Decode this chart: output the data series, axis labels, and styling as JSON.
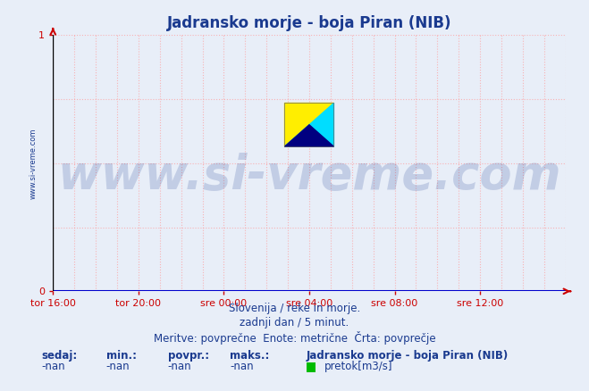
{
  "title": "Jadransko morje - boja Piran (NIB)",
  "title_color": "#1a3a8f",
  "title_fontsize": 12,
  "bg_color": "#e8eef8",
  "plot_bg_color": "#e8eef8",
  "grid_color": "#ff9999",
  "grid_alpha": 0.7,
  "grid_linestyle": ":",
  "x_tick_labels": [
    "tor 16:00",
    "tor 20:00",
    "sre 00:00",
    "sre 04:00",
    "sre 08:00",
    "sre 12:00"
  ],
  "x_tick_positions": [
    0.0,
    0.1667,
    0.3333,
    0.5,
    0.6667,
    0.8333
  ],
  "y_tick_labels": [
    "0",
    "1"
  ],
  "y_tick_positions": [
    0,
    1
  ],
  "ylim": [
    0,
    1
  ],
  "xlim": [
    0,
    1
  ],
  "axis_color": "#0000cc",
  "x_axis_color": "#0000cc",
  "y_axis_color": "#000000",
  "tick_color_x": "#cc0000",
  "tick_color_y": "#cc0000",
  "tick_label_color": "#1a3a8f",
  "tick_fontsize": 8,
  "ylabel_text": "www.si-vreme.com",
  "ylabel_color": "#1a3a8f",
  "ylabel_fontsize": 6,
  "watermark_text": "www.si-vreme.com",
  "watermark_color": "#1a3a8f",
  "watermark_alpha": 0.18,
  "watermark_fontsize": 38,
  "subtitle_lines": [
    "Slovenija / reke in morje.",
    "zadnji dan / 5 minut.",
    "Meritve: povprečne  Enote: metrične  Črta: povprečje"
  ],
  "subtitle_color": "#1a3a8f",
  "subtitle_fontsize": 8.5,
  "footer_labels_bold": [
    "sedaj:",
    "min.:",
    "povpr.:",
    "maks.:"
  ],
  "footer_values": [
    "-nan",
    "-nan",
    "-nan",
    "-nan"
  ],
  "footer_legend_label": "Jadransko morje - boja Piran (NIB)",
  "footer_legend_sublabel": "pretok[m3/s]",
  "footer_legend_color": "#00bb00",
  "footer_color": "#1a3a8f",
  "footer_fontsize": 8.5,
  "logo_yellow": "#ffee00",
  "logo_cyan": "#00ddff",
  "logo_blue": "#000080"
}
